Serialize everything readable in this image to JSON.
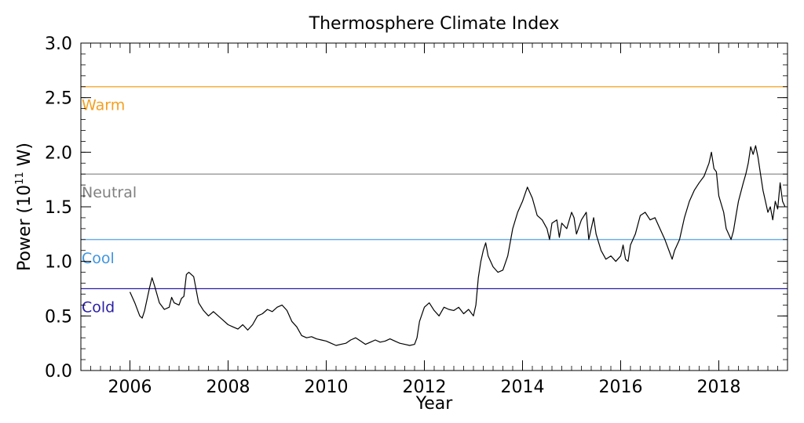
{
  "chart_data": {
    "type": "line",
    "title": "Thermosphere Climate Index",
    "xlabel": "Year",
    "ylabel_main": "Power (10",
    "ylabel_sup": "11",
    "ylabel_unit": " W)",
    "xlim": [
      2005.0,
      2019.4
    ],
    "ylim": [
      0.0,
      3.0
    ],
    "x_ticks": [
      2006,
      2008,
      2010,
      2012,
      2014,
      2016,
      2018
    ],
    "y_ticks": [
      "0.0",
      "0.5",
      "1.0",
      "1.5",
      "2.0",
      "2.5",
      "3.0"
    ],
    "grid": false,
    "thresholds": [
      {
        "name": "Warm",
        "value": 2.6,
        "color": "#f5a020"
      },
      {
        "name": "Neutral",
        "value": 1.8,
        "color": "#808080"
      },
      {
        "name": "Cool",
        "value": 1.2,
        "color": "#3f95e0"
      },
      {
        "name": "Cold",
        "value": 0.75,
        "color": "#2a1fa5"
      }
    ],
    "series": [
      {
        "color": "#000000",
        "points": [
          [
            2006.0,
            0.72
          ],
          [
            2006.1,
            0.62
          ],
          [
            2006.2,
            0.5
          ],
          [
            2006.25,
            0.48
          ],
          [
            2006.3,
            0.55
          ],
          [
            2006.4,
            0.76
          ],
          [
            2006.45,
            0.85
          ],
          [
            2006.5,
            0.78
          ],
          [
            2006.6,
            0.62
          ],
          [
            2006.7,
            0.56
          ],
          [
            2006.8,
            0.58
          ],
          [
            2006.85,
            0.67
          ],
          [
            2006.9,
            0.62
          ],
          [
            2007.0,
            0.6
          ],
          [
            2007.05,
            0.66
          ],
          [
            2007.1,
            0.68
          ],
          [
            2007.15,
            0.88
          ],
          [
            2007.2,
            0.9
          ],
          [
            2007.3,
            0.86
          ],
          [
            2007.4,
            0.62
          ],
          [
            2007.5,
            0.55
          ],
          [
            2007.6,
            0.5
          ],
          [
            2007.7,
            0.54
          ],
          [
            2007.8,
            0.5
          ],
          [
            2007.9,
            0.46
          ],
          [
            2008.0,
            0.42
          ],
          [
            2008.1,
            0.4
          ],
          [
            2008.2,
            0.38
          ],
          [
            2008.3,
            0.42
          ],
          [
            2008.4,
            0.37
          ],
          [
            2008.5,
            0.42
          ],
          [
            2008.6,
            0.5
          ],
          [
            2008.7,
            0.52
          ],
          [
            2008.8,
            0.56
          ],
          [
            2008.9,
            0.54
          ],
          [
            2009.0,
            0.58
          ],
          [
            2009.1,
            0.6
          ],
          [
            2009.2,
            0.55
          ],
          [
            2009.3,
            0.45
          ],
          [
            2009.4,
            0.4
          ],
          [
            2009.5,
            0.32
          ],
          [
            2009.6,
            0.3
          ],
          [
            2009.7,
            0.31
          ],
          [
            2009.8,
            0.29
          ],
          [
            2009.9,
            0.28
          ],
          [
            2010.0,
            0.27
          ],
          [
            2010.1,
            0.25
          ],
          [
            2010.2,
            0.23
          ],
          [
            2010.3,
            0.24
          ],
          [
            2010.4,
            0.25
          ],
          [
            2010.5,
            0.28
          ],
          [
            2010.6,
            0.3
          ],
          [
            2010.7,
            0.27
          ],
          [
            2010.8,
            0.24
          ],
          [
            2010.9,
            0.26
          ],
          [
            2011.0,
            0.28
          ],
          [
            2011.1,
            0.26
          ],
          [
            2011.2,
            0.27
          ],
          [
            2011.3,
            0.29
          ],
          [
            2011.4,
            0.27
          ],
          [
            2011.5,
            0.25
          ],
          [
            2011.6,
            0.24
          ],
          [
            2011.7,
            0.23
          ],
          [
            2011.8,
            0.24
          ],
          [
            2011.85,
            0.3
          ],
          [
            2011.9,
            0.45
          ],
          [
            2012.0,
            0.58
          ],
          [
            2012.1,
            0.62
          ],
          [
            2012.2,
            0.55
          ],
          [
            2012.3,
            0.5
          ],
          [
            2012.4,
            0.58
          ],
          [
            2012.5,
            0.56
          ],
          [
            2012.6,
            0.55
          ],
          [
            2012.7,
            0.58
          ],
          [
            2012.8,
            0.52
          ],
          [
            2012.9,
            0.56
          ],
          [
            2013.0,
            0.5
          ],
          [
            2013.05,
            0.6
          ],
          [
            2013.1,
            0.85
          ],
          [
            2013.15,
            1.0
          ],
          [
            2013.2,
            1.1
          ],
          [
            2013.25,
            1.17
          ],
          [
            2013.3,
            1.05
          ],
          [
            2013.4,
            0.95
          ],
          [
            2013.5,
            0.9
          ],
          [
            2013.6,
            0.92
          ],
          [
            2013.7,
            1.05
          ],
          [
            2013.8,
            1.3
          ],
          [
            2013.9,
            1.45
          ],
          [
            2014.0,
            1.55
          ],
          [
            2014.1,
            1.68
          ],
          [
            2014.2,
            1.58
          ],
          [
            2014.3,
            1.42
          ],
          [
            2014.4,
            1.38
          ],
          [
            2014.5,
            1.3
          ],
          [
            2014.55,
            1.2
          ],
          [
            2014.6,
            1.35
          ],
          [
            2014.7,
            1.38
          ],
          [
            2014.75,
            1.22
          ],
          [
            2014.8,
            1.35
          ],
          [
            2014.9,
            1.3
          ],
          [
            2015.0,
            1.45
          ],
          [
            2015.05,
            1.4
          ],
          [
            2015.1,
            1.25
          ],
          [
            2015.2,
            1.38
          ],
          [
            2015.3,
            1.45
          ],
          [
            2015.35,
            1.2
          ],
          [
            2015.4,
            1.3
          ],
          [
            2015.45,
            1.4
          ],
          [
            2015.5,
            1.25
          ],
          [
            2015.6,
            1.1
          ],
          [
            2015.7,
            1.02
          ],
          [
            2015.8,
            1.05
          ],
          [
            2015.9,
            1.0
          ],
          [
            2016.0,
            1.05
          ],
          [
            2016.05,
            1.15
          ],
          [
            2016.1,
            1.02
          ],
          [
            2016.15,
            1.0
          ],
          [
            2016.2,
            1.15
          ],
          [
            2016.3,
            1.25
          ],
          [
            2016.4,
            1.42
          ],
          [
            2016.5,
            1.45
          ],
          [
            2016.6,
            1.38
          ],
          [
            2016.7,
            1.4
          ],
          [
            2016.8,
            1.3
          ],
          [
            2016.9,
            1.2
          ],
          [
            2017.0,
            1.08
          ],
          [
            2017.05,
            1.02
          ],
          [
            2017.1,
            1.1
          ],
          [
            2017.2,
            1.2
          ],
          [
            2017.3,
            1.4
          ],
          [
            2017.4,
            1.55
          ],
          [
            2017.5,
            1.65
          ],
          [
            2017.6,
            1.72
          ],
          [
            2017.7,
            1.78
          ],
          [
            2017.8,
            1.9
          ],
          [
            2017.85,
            2.0
          ],
          [
            2017.9,
            1.85
          ],
          [
            2017.95,
            1.82
          ],
          [
            2018.0,
            1.6
          ],
          [
            2018.1,
            1.45
          ],
          [
            2018.15,
            1.3
          ],
          [
            2018.2,
            1.25
          ],
          [
            2018.25,
            1.2
          ],
          [
            2018.3,
            1.28
          ],
          [
            2018.35,
            1.42
          ],
          [
            2018.4,
            1.55
          ],
          [
            2018.5,
            1.72
          ],
          [
            2018.55,
            1.8
          ],
          [
            2018.6,
            1.9
          ],
          [
            2018.65,
            2.05
          ],
          [
            2018.7,
            1.98
          ],
          [
            2018.75,
            2.06
          ],
          [
            2018.8,
            1.95
          ],
          [
            2018.85,
            1.8
          ],
          [
            2018.9,
            1.65
          ],
          [
            2018.95,
            1.55
          ],
          [
            2019.0,
            1.45
          ],
          [
            2019.05,
            1.5
          ],
          [
            2019.1,
            1.38
          ],
          [
            2019.15,
            1.55
          ],
          [
            2019.2,
            1.48
          ],
          [
            2019.25,
            1.72
          ],
          [
            2019.3,
            1.55
          ],
          [
            2019.35,
            1.5
          ]
        ]
      }
    ]
  }
}
